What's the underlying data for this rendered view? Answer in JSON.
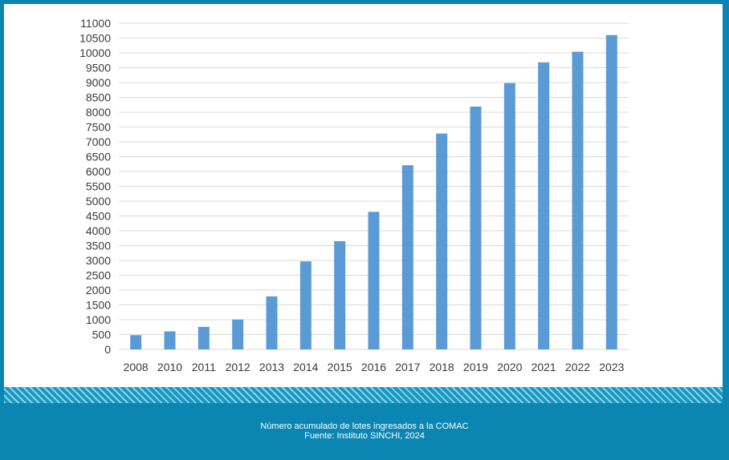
{
  "caption": {
    "line1": "Número acumulado de lotes ingresados a la COMAC",
    "line2": "Fuente: Instituto SINCHI, 2024"
  },
  "colors": {
    "bar": "#5b9bd5",
    "frame": "#0b86b3",
    "grid": "#d9d9d9"
  },
  "chart_data": {
    "type": "bar",
    "categories": [
      "2008",
      "2010",
      "2011",
      "2012",
      "2013",
      "2014",
      "2015",
      "2016",
      "2017",
      "2018",
      "2019",
      "2020",
      "2021",
      "2022",
      "2023"
    ],
    "values": [
      480,
      610,
      760,
      1010,
      1790,
      2970,
      3650,
      4640,
      6210,
      7280,
      8190,
      8980,
      9680,
      10040,
      10600
    ],
    "title": "",
    "xlabel": "",
    "ylabel": "",
    "ylim": [
      0,
      11000
    ],
    "yticks": [
      0,
      500,
      1000,
      1500,
      2000,
      2500,
      3000,
      3500,
      4000,
      4500,
      5000,
      5500,
      6000,
      6500,
      7000,
      7500,
      8000,
      8500,
      9000,
      9500,
      10000,
      10500,
      11000
    ],
    "grid": true,
    "legend": "none"
  }
}
